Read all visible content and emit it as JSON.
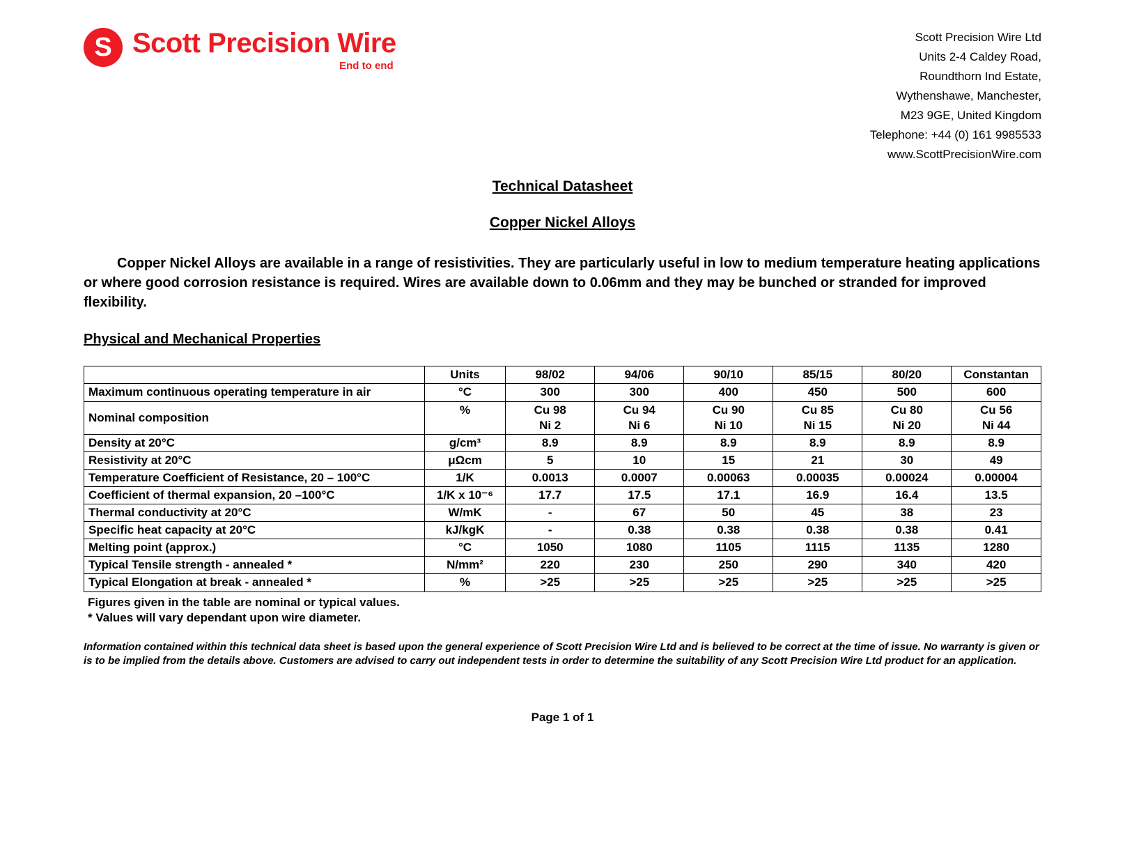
{
  "brand": {
    "name": "Scott Precision Wire",
    "tagline": "End to end",
    "logo_letter": "S",
    "brand_color": "#ed1c24"
  },
  "address": [
    "Scott Precision Wire Ltd",
    "Units 2-4 Caldey Road,",
    "Roundthorn Ind Estate,",
    "Wythenshawe, Manchester,",
    "M23 9GE, United Kingdom",
    "Telephone: +44 (0) 161 9985533",
    "www.ScottPrecisionWire.com"
  ],
  "title": "Technical Datasheet",
  "subtitle": "Copper Nickel Alloys",
  "intro": "Copper Nickel Alloys are available in a range of resistivities.  They are particularly useful in low to medium temperature heating applications or where good corrosion resistance is required.  Wires are available down to 0.06mm and  they may be bunched or stranded for improved flexibility.",
  "section_heading": "Physical and Mechanical Properties",
  "table": {
    "columns": [
      "Units",
      "98/02",
      "94/06",
      "90/10",
      "85/15",
      "80/20",
      "Constantan"
    ],
    "rows": [
      {
        "prop": "Maximum continuous operating temperature in air",
        "unit": "°C",
        "vals": [
          "300",
          "300",
          "400",
          "450",
          "500",
          "600"
        ]
      },
      {
        "prop": "Nominal composition",
        "unit": "%",
        "vals": [
          "Cu 98",
          "Cu 94",
          "Cu 90",
          "Cu 85",
          "Cu 80",
          "Cu 56"
        ],
        "vals2": [
          "Ni 2",
          "Ni 6",
          "Ni 10",
          "Ni 15",
          "Ni 20",
          "Ni 44"
        ]
      },
      {
        "prop": "Density at 20°C",
        "unit": "g/cm³",
        "vals": [
          "8.9",
          "8.9",
          "8.9",
          "8.9",
          "8.9",
          "8.9"
        ]
      },
      {
        "prop": "Resistivity at 20°C",
        "unit": "μΩcm",
        "vals": [
          "5",
          "10",
          "15",
          "21",
          "30",
          "49"
        ]
      },
      {
        "prop": "Temperature Coefficient of Resistance, 20 – 100°C",
        "unit": "1/K",
        "vals": [
          "0.0013",
          "0.0007",
          "0.00063",
          "0.00035",
          "0.00024",
          "0.00004"
        ]
      },
      {
        "prop": "Coefficient of thermal expansion, 20 –100°C",
        "unit": "1/K x 10⁻⁶",
        "vals": [
          "17.7",
          "17.5",
          "17.1",
          "16.9",
          "16.4",
          "13.5"
        ]
      },
      {
        "prop": "Thermal conductivity at 20°C",
        "unit": "W/mK",
        "vals": [
          "-",
          "67",
          "50",
          "45",
          "38",
          "23"
        ]
      },
      {
        "prop": "Specific heat capacity at 20°C",
        "unit": "kJ/kgK",
        "vals": [
          "-",
          "0.38",
          "0.38",
          "0.38",
          "0.38",
          "0.41"
        ]
      },
      {
        "prop": "Melting point (approx.)",
        "unit": "°C",
        "vals": [
          "1050",
          "1080",
          "1105",
          "1115",
          "1135",
          "1280"
        ]
      },
      {
        "prop": "Typical Tensile strength - annealed *",
        "unit": "N/mm²",
        "vals": [
          "220",
          "230",
          "250",
          "290",
          "340",
          "420"
        ]
      },
      {
        "prop": "Typical Elongation at break - annealed *",
        "unit": "%",
        "vals": [
          ">25",
          ">25",
          ">25",
          ">25",
          ">25",
          ">25"
        ]
      }
    ]
  },
  "footnotes": [
    "Figures given in the table are nominal or typical values.",
    "* Values will vary dependant upon wire diameter."
  ],
  "disclaimer": "Information contained within this technical data sheet is based upon the general experience of Scott Precision Wire Ltd and is believed to be correct at the time of issue.  No warranty is given or is to be implied from  the details above.  Customers are advised to carry out independent tests in order to determine the suitability of any Scott Precision Wire Ltd product for an application.",
  "page_number": "Page 1 of  1"
}
